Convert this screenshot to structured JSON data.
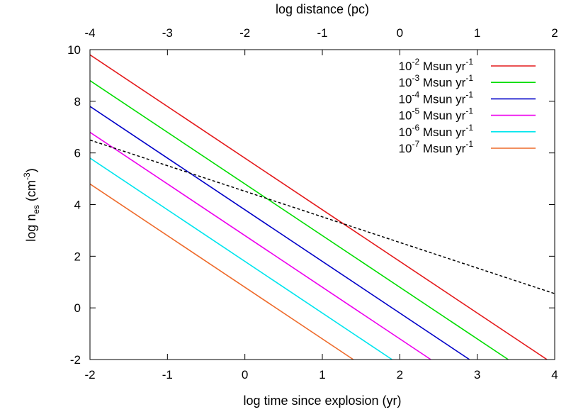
{
  "chart_data": {
    "type": "line",
    "xlabel": "log time since explosion (yr)",
    "x2label": "log distance (pc)",
    "ylabel": "log n",
    "ylabel_sub": "es",
    "ylabel_unit_open": " (cm",
    "ylabel_unit_sup": "-3",
    "ylabel_unit_close": ")",
    "xlim": [
      -2,
      4
    ],
    "x2lim": [
      -4,
      2
    ],
    "ylim": [
      -2,
      10
    ],
    "xticks": [
      "-2",
      "-1",
      "0",
      "1",
      "2",
      "3",
      "4"
    ],
    "x2ticks": [
      "-4",
      "-3",
      "-2",
      "-1",
      "0",
      "1",
      "2"
    ],
    "yticks": [
      "-2",
      "0",
      "2",
      "4",
      "6",
      "8",
      "10"
    ],
    "legend_position": "top-right",
    "series": [
      {
        "name_base": "10",
        "name_exp": "-2",
        "name_unit": " Msun yr",
        "name_unit_exp": "-1",
        "color": "#e41a1c",
        "x": [
          -2,
          3.9
        ],
        "y": [
          9.8,
          -2
        ]
      },
      {
        "name_base": "10",
        "name_exp": "-3",
        "name_unit": " Msun yr",
        "name_unit_exp": "-1",
        "color": "#00dd00",
        "x": [
          -2,
          3.4
        ],
        "y": [
          8.8,
          -2
        ]
      },
      {
        "name_base": "10",
        "name_exp": "-4",
        "name_unit": " Msun yr",
        "name_unit_exp": "-1",
        "color": "#0000c8",
        "x": [
          -2,
          2.9
        ],
        "y": [
          7.8,
          -2
        ]
      },
      {
        "name_base": "10",
        "name_exp": "-5",
        "name_unit": " Msun yr",
        "name_unit_exp": "-1",
        "color": "#ee00ee",
        "x": [
          -2,
          2.4
        ],
        "y": [
          6.8,
          -2
        ]
      },
      {
        "name_base": "10",
        "name_exp": "-6",
        "name_unit": " Msun yr",
        "name_unit_exp": "-1",
        "color": "#00e5ee",
        "x": [
          -2,
          1.9
        ],
        "y": [
          5.8,
          -2
        ]
      },
      {
        "name_base": "10",
        "name_exp": "-7",
        "name_unit": " Msun yr",
        "name_unit_exp": "-1",
        "color": "#ee6a2a",
        "x": [
          -2,
          1.4
        ],
        "y": [
          4.8,
          -2
        ]
      }
    ],
    "reference_line": {
      "color": "#000000",
      "dash": true,
      "x": [
        -2,
        4
      ],
      "y": [
        6.5,
        0.55
      ]
    }
  }
}
